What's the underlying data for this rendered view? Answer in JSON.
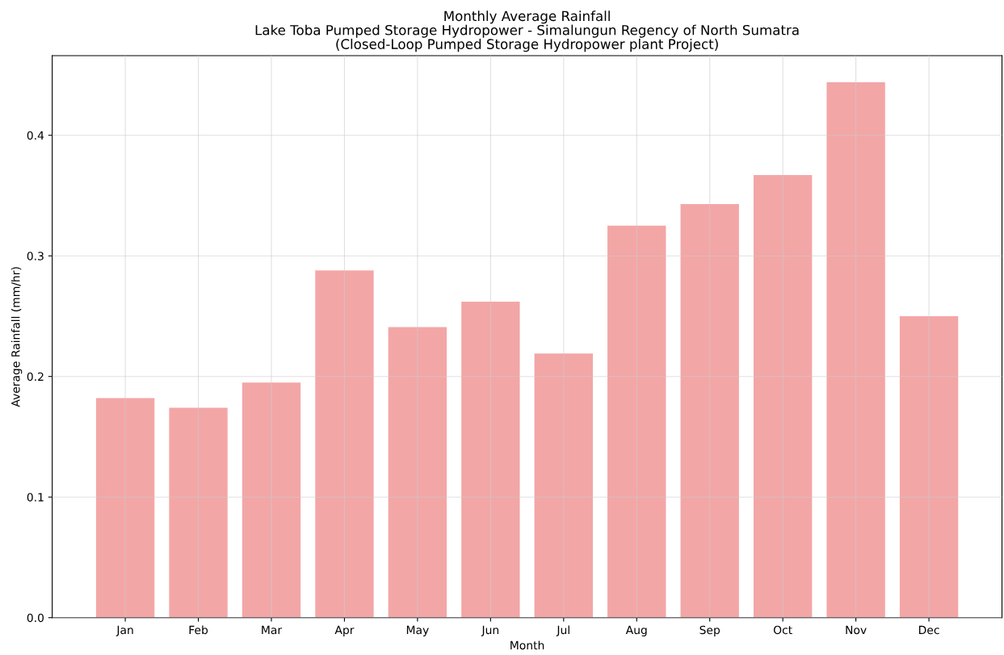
{
  "chart_data": {
    "type": "bar",
    "title": "Monthly Average Rainfall\nLake Toba Pumped Storage Hydropower - Simalungun Regency of North Sumatra\n(Closed-Loop Pumped Storage Hydropower plant Project)",
    "xlabel": "Month",
    "ylabel": "Average Rainfall (mm/hr)",
    "categories": [
      "Jan",
      "Feb",
      "Mar",
      "Apr",
      "May",
      "Jun",
      "Jul",
      "Aug",
      "Sep",
      "Oct",
      "Nov",
      "Dec"
    ],
    "values": [
      0.182,
      0.174,
      0.195,
      0.288,
      0.241,
      0.262,
      0.219,
      0.325,
      0.343,
      0.367,
      0.444,
      0.25
    ],
    "color": "#f3a6a6",
    "ylim": [
      0,
      0.466
    ],
    "yticks": [
      {
        "value": 0,
        "label": "0.0"
      },
      0.1,
      0.2,
      0.3,
      0.4
    ],
    "grid": true
  }
}
